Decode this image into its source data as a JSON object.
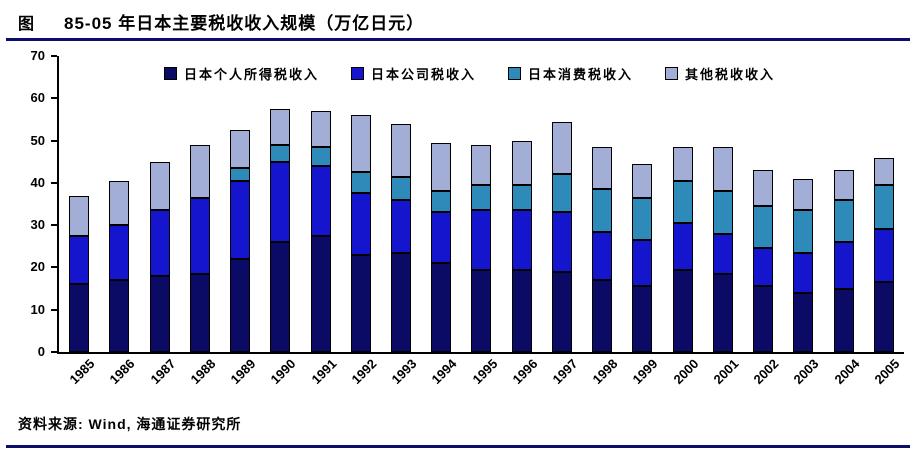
{
  "header": {
    "prefix": "图",
    "title": "85-05 年日本主要税收收入规模（万亿日元）"
  },
  "footer": {
    "source": "资料来源: Wind, 海通证券研究所"
  },
  "colors": {
    "rule": "#0d0d6b",
    "axis": "#000000"
  },
  "chart_data": {
    "type": "bar",
    "stacked": true,
    "title": "85-05 年日本主要税收收入规模（万亿日元）",
    "xlabel": "",
    "ylabel": "",
    "ylim": [
      0,
      70
    ],
    "yticks": [
      0,
      10,
      20,
      30,
      40,
      50,
      60,
      70
    ],
    "grid": false,
    "legend_position": "top",
    "categories": [
      "1985",
      "1986",
      "1987",
      "1988",
      "1989",
      "1990",
      "1991",
      "1992",
      "1993",
      "1994",
      "1995",
      "1996",
      "1997",
      "1998",
      "1999",
      "2000",
      "2001",
      "2002",
      "2003",
      "2004",
      "2005"
    ],
    "series": [
      {
        "name": "日本个人所得税收入",
        "color": "#0b0b66",
        "values": [
          16,
          17,
          18,
          18.5,
          22,
          26,
          27.5,
          23,
          23.5,
          21,
          19.5,
          19.5,
          19,
          17,
          15.5,
          19.5,
          18.5,
          15.5,
          14,
          15,
          16.5
        ]
      },
      {
        "name": "日本公司税收入",
        "color": "#1515cd",
        "values": [
          11.5,
          13,
          15.5,
          18,
          18.5,
          19,
          16.5,
          14.5,
          12.5,
          12,
          14,
          14,
          14,
          11.5,
          11,
          11,
          9.5,
          9,
          9.5,
          11,
          12.5
        ]
      },
      {
        "name": "日本消费税收入",
        "color": "#2e8ab8",
        "values": [
          0,
          0,
          0,
          0,
          3,
          4,
          4.5,
          5,
          5.5,
          5,
          6,
          6,
          9,
          10,
          10,
          10,
          10,
          10,
          10,
          10,
          10.5
        ]
      },
      {
        "name": "其他税收收入",
        "color": "#a3aed6",
        "values": [
          9.5,
          10.5,
          11.5,
          12.5,
          9,
          8.5,
          8.5,
          13.5,
          12.5,
          11.5,
          9.5,
          10.5,
          12.5,
          10,
          8,
          8,
          10.5,
          8.5,
          7.5,
          7,
          6.5
        ]
      }
    ]
  }
}
